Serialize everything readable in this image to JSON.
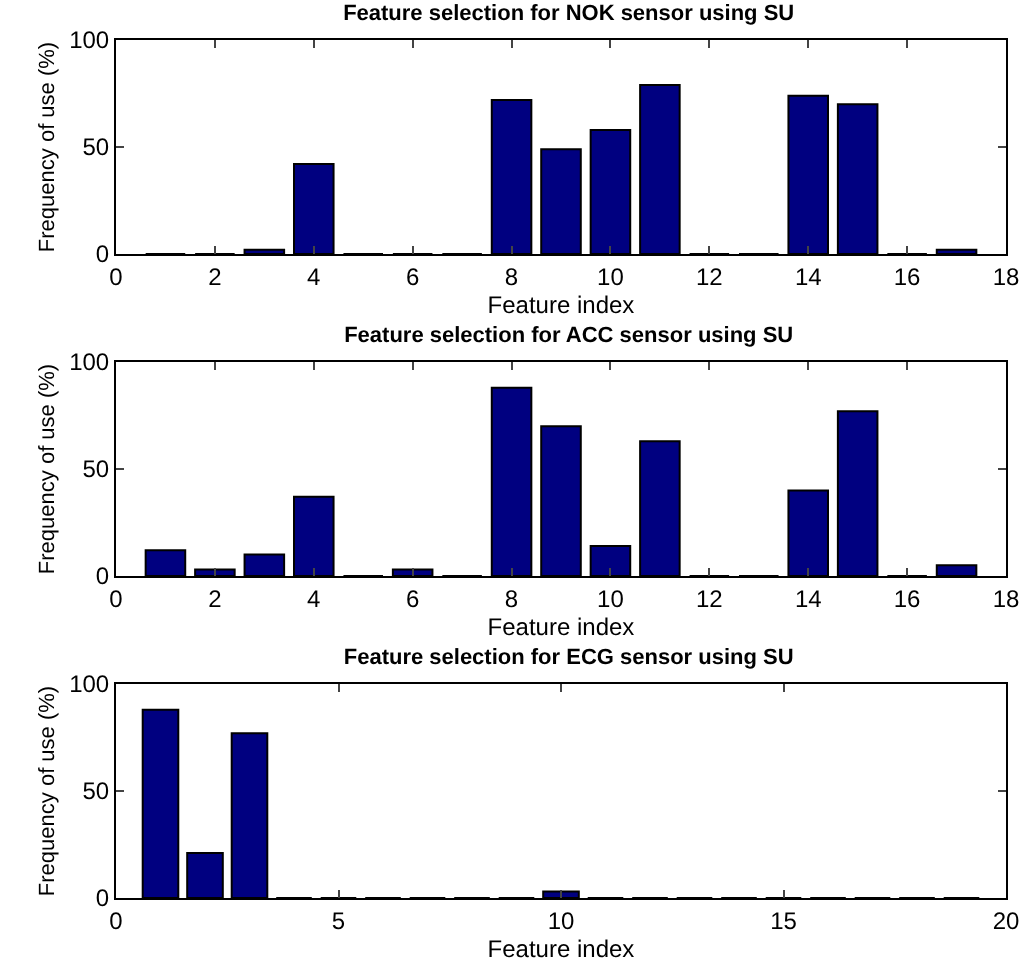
{
  "chart_data": [
    {
      "type": "bar",
      "title": "Feature selection for NOK sensor using SU",
      "xlabel": "Feature index",
      "ylabel": "Frequency of use (%)",
      "x": [
        1,
        2,
        3,
        4,
        5,
        6,
        7,
        8,
        9,
        10,
        11,
        12,
        13,
        14,
        15,
        16,
        17
      ],
      "values": [
        0,
        0,
        2,
        42,
        0,
        0,
        0,
        72,
        49,
        58,
        79,
        0,
        0,
        74,
        70,
        0,
        2
      ],
      "color": "#000080",
      "xlim": [
        0,
        18
      ],
      "xticks": [
        0,
        2,
        4,
        6,
        8,
        10,
        12,
        14,
        16,
        18
      ],
      "ylim": [
        0,
        100
      ],
      "yticks": [
        0,
        50,
        100
      ],
      "grid": false
    },
    {
      "type": "bar",
      "title": "Feature selection for ACC sensor using SU",
      "xlabel": "Feature index",
      "ylabel": "Frequency of use (%)",
      "x": [
        1,
        2,
        3,
        4,
        5,
        6,
        7,
        8,
        9,
        10,
        11,
        12,
        13,
        14,
        15,
        16,
        17
      ],
      "values": [
        12,
        3,
        10,
        37,
        0,
        3,
        0,
        88,
        70,
        14,
        63,
        0,
        0,
        40,
        77,
        0,
        5
      ],
      "color": "#000080",
      "xlim": [
        0,
        18
      ],
      "xticks": [
        0,
        2,
        4,
        6,
        8,
        10,
        12,
        14,
        16,
        18
      ],
      "ylim": [
        0,
        100
      ],
      "yticks": [
        0,
        50,
        100
      ],
      "grid": false
    },
    {
      "type": "bar",
      "title": "Feature selection for ECG sensor using SU",
      "xlabel": "Feature index",
      "ylabel": "Frequency of use (%)",
      "x": [
        1,
        2,
        3,
        4,
        5,
        6,
        7,
        8,
        9,
        10,
        11,
        12,
        13,
        14,
        15,
        16,
        17,
        18,
        19
      ],
      "values": [
        88,
        21,
        77,
        0,
        0,
        0,
        0,
        0,
        0,
        3,
        0,
        0,
        0,
        0,
        0,
        0,
        0,
        0,
        0
      ],
      "color": "#000080",
      "xlim": [
        0,
        20
      ],
      "xticks": [
        0,
        5,
        10,
        15,
        20
      ],
      "ylim": [
        0,
        100
      ],
      "yticks": [
        0,
        50,
        100
      ],
      "grid": false
    }
  ]
}
